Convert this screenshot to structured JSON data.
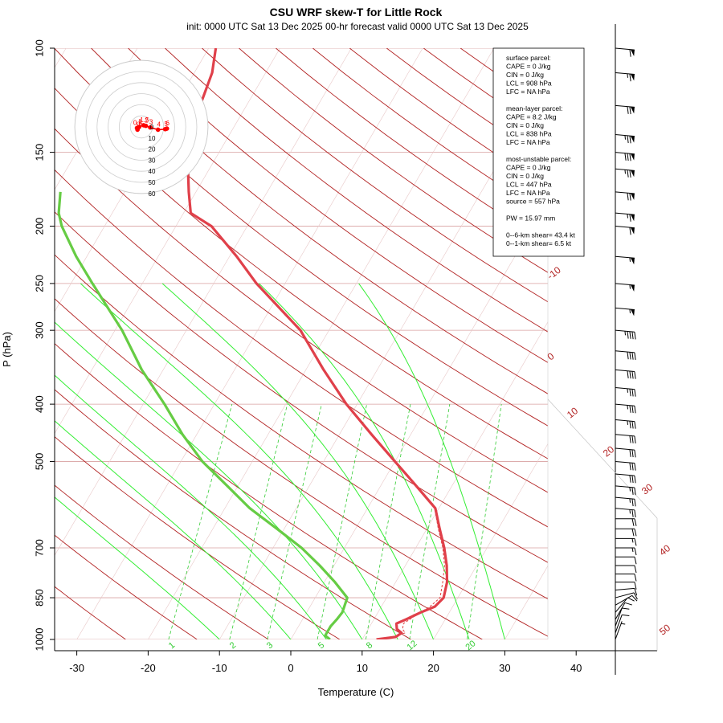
{
  "title": "CSU WRF skew-T for Little Rock",
  "subtitle": "init: 0000 UTC Sat 13 Dec 2025     00-hr forecast valid 0000 UTC Sat 13 Dec 2025",
  "colors": {
    "temperature": "#e0404a",
    "dewpoint": "#66cc44",
    "isotherm": "#b22222",
    "mixing_ratio": "#33cc33",
    "moist_adiabat": "#33ee33",
    "grid": "#d8a0a0",
    "parcel": "#e04040"
  },
  "chart_data": {
    "type": "skew-t",
    "title": "CSU WRF skew-T for Little Rock",
    "xlabel": "Temperature (C)",
    "ylabel": "P (hPa)",
    "x_ticks": [
      -30,
      -20,
      -10,
      0,
      10,
      20,
      30,
      40
    ],
    "y_ticks": [
      100,
      150,
      200,
      250,
      300,
      400,
      500,
      700,
      850,
      1000
    ],
    "isotherm_labels": [
      -10,
      0,
      10,
      20,
      30,
      40,
      50
    ],
    "mixing_ratio_labels": [
      "1",
      "2",
      "3",
      "5",
      "8",
      "12",
      "20"
    ],
    "temperature_profile": [
      {
        "p": 1000,
        "t": 12.0
      },
      {
        "p": 990,
        "t": 14.5
      },
      {
        "p": 975,
        "t": 15.0
      },
      {
        "p": 960,
        "t": 14.0
      },
      {
        "p": 940,
        "t": 13.5
      },
      {
        "p": 925,
        "t": 14.5
      },
      {
        "p": 900,
        "t": 16.0
      },
      {
        "p": 880,
        "t": 17.5
      },
      {
        "p": 850,
        "t": 18.0
      },
      {
        "p": 800,
        "t": 17.2
      },
      {
        "p": 750,
        "t": 15.8
      },
      {
        "p": 700,
        "t": 14.0
      },
      {
        "p": 650,
        "t": 11.8
      },
      {
        "p": 600,
        "t": 9.5
      },
      {
        "p": 550,
        "t": 5.0
      },
      {
        "p": 500,
        "t": 0.0
      },
      {
        "p": 450,
        "t": -5.5
      },
      {
        "p": 400,
        "t": -11.5
      },
      {
        "p": 350,
        "t": -17.5
      },
      {
        "p": 300,
        "t": -24.0
      },
      {
        "p": 250,
        "t": -34.0
      },
      {
        "p": 225,
        "t": -39.0
      },
      {
        "p": 200,
        "t": -45.0
      },
      {
        "p": 190,
        "t": -49.0
      },
      {
        "p": 175,
        "t": -51.0
      },
      {
        "p": 160,
        "t": -53.0
      },
      {
        "p": 150,
        "t": -54.0
      },
      {
        "p": 125,
        "t": -56.5
      },
      {
        "p": 110,
        "t": -57.5
      },
      {
        "p": 100,
        "t": -59.0
      }
    ],
    "dewpoint_profile": [
      {
        "p": 1000,
        "t": 5.5
      },
      {
        "p": 985,
        "t": 4.5
      },
      {
        "p": 950,
        "t": 4.5
      },
      {
        "p": 925,
        "t": 4.8
      },
      {
        "p": 900,
        "t": 5.0
      },
      {
        "p": 850,
        "t": 4.5
      },
      {
        "p": 800,
        "t": 1.5
      },
      {
        "p": 750,
        "t": -2.0
      },
      {
        "p": 700,
        "t": -6.0
      },
      {
        "p": 650,
        "t": -11.0
      },
      {
        "p": 600,
        "t": -16.5
      },
      {
        "p": 550,
        "t": -21.5
      },
      {
        "p": 500,
        "t": -27.0
      },
      {
        "p": 450,
        "t": -32.0
      },
      {
        "p": 400,
        "t": -37.0
      },
      {
        "p": 350,
        "t": -43.0
      },
      {
        "p": 300,
        "t": -49.0
      },
      {
        "p": 250,
        "t": -57.0
      },
      {
        "p": 225,
        "t": -61.5
      },
      {
        "p": 200,
        "t": -66.0
      },
      {
        "p": 190,
        "t": -67.5
      },
      {
        "p": 175,
        "t": -69.0
      }
    ],
    "parcel_profile": [
      {
        "p": 1000,
        "t": 13.0
      },
      {
        "p": 975,
        "t": 15.5
      },
      {
        "p": 960,
        "t": 14.8
      },
      {
        "p": 940,
        "t": 14.5
      },
      {
        "p": 908,
        "t": 15.6
      },
      {
        "p": 880,
        "t": 16.8
      },
      {
        "p": 850,
        "t": 17.5
      },
      {
        "p": 800,
        "t": 16.6
      },
      {
        "p": 750,
        "t": 15.5
      },
      {
        "p": 700,
        "t": 13.8
      },
      {
        "p": 650,
        "t": 11.6
      },
      {
        "p": 600,
        "t": 9.4
      }
    ],
    "hodograph": {
      "rings": [
        10,
        20,
        30,
        40,
        50,
        60
      ],
      "ring_labels": [
        "10",
        "20",
        "30",
        "40",
        "50",
        "60"
      ],
      "points": [
        {
          "label": "0",
          "u": -3.5,
          "v": -2.5
        },
        {
          "label": "0.5",
          "u": -4.0,
          "v": -1.0
        },
        {
          "label": "1",
          "u": -2.0,
          "v": 0.0
        },
        {
          "label": "1.5",
          "u": 2.0,
          "v": 1.5
        },
        {
          "label": "2",
          "u": 4.0,
          "v": 1.0
        },
        {
          "label": "3",
          "u": 8.0,
          "v": -0.5
        },
        {
          "label": "4",
          "u": 15.0,
          "v": -2.5
        },
        {
          "label": "5",
          "u": 21.5,
          "v": -2.0
        },
        {
          "label": "6",
          "u": 23.0,
          "v": -1.5
        }
      ]
    },
    "wind_barbs": [
      {
        "p": 100,
        "dir": 275,
        "spd": 60
      },
      {
        "p": 110,
        "dir": 275,
        "spd": 65
      },
      {
        "p": 125,
        "dir": 275,
        "spd": 70
      },
      {
        "p": 140,
        "dir": 275,
        "spd": 75
      },
      {
        "p": 150,
        "dir": 275,
        "spd": 80
      },
      {
        "p": 160,
        "dir": 275,
        "spd": 75
      },
      {
        "p": 175,
        "dir": 275,
        "spd": 70
      },
      {
        "p": 190,
        "dir": 275,
        "spd": 65
      },
      {
        "p": 200,
        "dir": 275,
        "spd": 60
      },
      {
        "p": 225,
        "dir": 275,
        "spd": 55
      },
      {
        "p": 250,
        "dir": 275,
        "spd": 55
      },
      {
        "p": 275,
        "dir": 275,
        "spd": 55
      },
      {
        "p": 300,
        "dir": 275,
        "spd": 45
      },
      {
        "p": 325,
        "dir": 275,
        "spd": 40
      },
      {
        "p": 350,
        "dir": 275,
        "spd": 40
      },
      {
        "p": 375,
        "dir": 275,
        "spd": 35
      },
      {
        "p": 400,
        "dir": 275,
        "spd": 35
      },
      {
        "p": 425,
        "dir": 275,
        "spd": 35
      },
      {
        "p": 450,
        "dir": 275,
        "spd": 30
      },
      {
        "p": 475,
        "dir": 275,
        "spd": 30
      },
      {
        "p": 500,
        "dir": 275,
        "spd": 30
      },
      {
        "p": 525,
        "dir": 275,
        "spd": 30
      },
      {
        "p": 550,
        "dir": 275,
        "spd": 25
      },
      {
        "p": 575,
        "dir": 275,
        "spd": 25
      },
      {
        "p": 600,
        "dir": 275,
        "spd": 25
      },
      {
        "p": 625,
        "dir": 270,
        "spd": 20
      },
      {
        "p": 650,
        "dir": 270,
        "spd": 20
      },
      {
        "p": 675,
        "dir": 270,
        "spd": 15
      },
      {
        "p": 700,
        "dir": 270,
        "spd": 15
      },
      {
        "p": 725,
        "dir": 270,
        "spd": 10
      },
      {
        "p": 750,
        "dir": 270,
        "spd": 10
      },
      {
        "p": 775,
        "dir": 270,
        "spd": 10
      },
      {
        "p": 800,
        "dir": 270,
        "spd": 10
      },
      {
        "p": 825,
        "dir": 265,
        "spd": 10
      },
      {
        "p": 850,
        "dir": 255,
        "spd": 10
      },
      {
        "p": 875,
        "dir": 240,
        "spd": 10
      },
      {
        "p": 900,
        "dir": 220,
        "spd": 10
      },
      {
        "p": 925,
        "dir": 210,
        "spd": 10
      },
      {
        "p": 950,
        "dir": 200,
        "spd": 10
      },
      {
        "p": 975,
        "dir": 200,
        "spd": 10
      },
      {
        "p": 1000,
        "dir": 200,
        "spd": 5
      }
    ]
  },
  "info_box": {
    "lines": [
      "surface parcel:",
      "CAPE = 0 J/kg",
      "CIN = 0 J/kg",
      "LCL = 908 hPa",
      "LFC = NA hPa",
      "",
      "mean-layer parcel:",
      "CAPE = 8.2 J/kg",
      "CIN = 0 J/kg",
      "LCL = 838 hPa",
      "LFC = NA hPa",
      "",
      "most-unstable parcel:",
      "CAPE = 0 J/kg",
      "CIN = 0 J/kg",
      "LCL = 447 hPa",
      "LFC = NA hPa",
      "source = 557 hPa",
      "",
      "PW =  15.97 mm",
      "",
      "0--6-km shear= 43.4 kt",
      "0--1-km shear= 6.5 kt"
    ]
  }
}
